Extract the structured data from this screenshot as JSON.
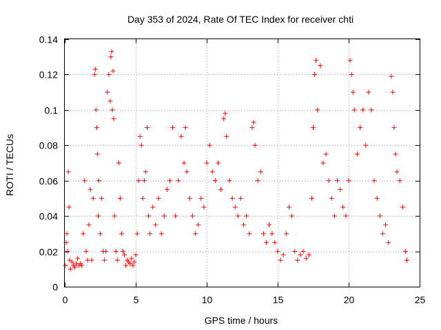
{
  "chart_data": {
    "type": "scatter",
    "title": "Day 353 of 2024, Rate Of TEC Index for receiver chti",
    "xlabel": "GPS time / hours",
    "ylabel": "ROTI / TECUs",
    "xlim": [
      0,
      25
    ],
    "ylim": [
      0,
      0.14
    ],
    "x_ticks": [
      0,
      5,
      10,
      15,
      20,
      25
    ],
    "x_tick_labels": [
      "0",
      "5",
      "10",
      "15",
      "20",
      "25"
    ],
    "y_ticks": [
      0,
      0.02,
      0.04,
      0.06,
      0.08,
      0.1,
      0.12,
      0.14
    ],
    "y_tick_labels": [
      "0",
      "0.02",
      "0.04",
      "0.06",
      "0.08",
      "0.1",
      "0.12",
      "0.14"
    ],
    "grid": true,
    "marker": "+",
    "series": [
      {
        "name": "ROTI",
        "color": "#ff0000",
        "x": [
          0.05,
          0.1,
          0.15,
          0.2,
          0.25,
          0.3,
          0.35,
          0.4,
          0.5,
          0.6,
          0.7,
          0.8,
          0.9,
          1.0,
          1.1,
          1.2,
          1.3,
          1.4,
          1.5,
          1.6,
          1.7,
          1.8,
          1.9,
          2.0,
          2.1,
          2.15,
          2.2,
          2.25,
          2.3,
          2.35,
          2.4,
          2.5,
          2.6,
          2.7,
          2.8,
          2.9,
          3.0,
          3.1,
          3.2,
          3.25,
          3.3,
          3.35,
          3.4,
          3.45,
          3.5,
          3.6,
          3.7,
          3.8,
          3.9,
          4.0,
          4.1,
          4.2,
          4.3,
          4.4,
          4.5,
          4.6,
          4.7,
          4.8,
          4.9,
          5.0,
          5.1,
          5.2,
          5.3,
          5.4,
          5.5,
          5.6,
          5.7,
          5.8,
          5.9,
          6.0,
          6.2,
          6.4,
          6.6,
          6.8,
          7.0,
          7.2,
          7.4,
          7.6,
          7.8,
          8.0,
          8.2,
          8.4,
          8.5,
          8.6,
          8.8,
          9.0,
          9.2,
          9.4,
          9.6,
          9.8,
          10.0,
          10.2,
          10.4,
          10.6,
          10.8,
          11.0,
          11.2,
          11.3,
          11.4,
          11.6,
          11.8,
          12.0,
          12.2,
          12.4,
          12.6,
          12.8,
          13.0,
          13.2,
          13.3,
          13.4,
          13.6,
          13.8,
          14.0,
          14.2,
          14.4,
          14.6,
          14.8,
          15.0,
          15.2,
          15.4,
          15.6,
          15.8,
          16.0,
          16.2,
          16.4,
          16.6,
          16.8,
          17.0,
          17.2,
          17.4,
          17.5,
          17.6,
          17.7,
          17.8,
          18.0,
          18.2,
          18.4,
          18.6,
          18.8,
          19.0,
          19.2,
          19.4,
          19.6,
          19.8,
          20.0,
          20.1,
          20.2,
          20.3,
          20.4,
          20.6,
          20.8,
          21.0,
          21.2,
          21.4,
          21.6,
          21.8,
          22.0,
          22.2,
          22.4,
          22.6,
          22.8,
          23.0,
          23.1,
          23.2,
          23.3,
          23.4,
          23.6,
          23.8,
          24.0,
          24.1
        ],
        "y": [
          0.012,
          0.025,
          0.03,
          0.02,
          0.065,
          0.045,
          0.015,
          0.01,
          0.014,
          0.012,
          0.011,
          0.013,
          0.016,
          0.012,
          0.013,
          0.012,
          0.03,
          0.06,
          0.02,
          0.015,
          0.035,
          0.055,
          0.015,
          0.05,
          0.12,
          0.123,
          0.1,
          0.09,
          0.075,
          0.04,
          0.06,
          0.03,
          0.05,
          0.02,
          0.015,
          0.02,
          0.11,
          0.12,
          0.105,
          0.13,
          0.133,
          0.1,
          0.122,
          0.095,
          0.04,
          0.02,
          0.015,
          0.07,
          0.05,
          0.03,
          0.02,
          0.018,
          0.012,
          0.015,
          0.014,
          0.013,
          0.016,
          0.012,
          0.014,
          0.018,
          0.03,
          0.06,
          0.085,
          0.08,
          0.05,
          0.06,
          0.065,
          0.09,
          0.04,
          0.03,
          0.045,
          0.035,
          0.05,
          0.03,
          0.04,
          0.055,
          0.06,
          0.09,
          0.04,
          0.06,
          0.085,
          0.07,
          0.09,
          0.065,
          0.05,
          0.04,
          0.03,
          0.035,
          0.05,
          0.045,
          0.07,
          0.08,
          0.065,
          0.06,
          0.07,
          0.055,
          0.095,
          0.098,
          0.085,
          0.06,
          0.05,
          0.045,
          0.04,
          0.05,
          0.035,
          0.04,
          0.03,
          0.09,
          0.093,
          0.08,
          0.06,
          0.065,
          0.03,
          0.025,
          0.035,
          0.03,
          0.025,
          0.02,
          0.015,
          0.018,
          0.03,
          0.045,
          0.04,
          0.02,
          0.015,
          0.018,
          0.02,
          0.016,
          0.018,
          0.05,
          0.09,
          0.12,
          0.128,
          0.1,
          0.125,
          0.07,
          0.075,
          0.06,
          0.05,
          0.04,
          0.06,
          0.055,
          0.045,
          0.04,
          0.06,
          0.128,
          0.12,
          0.11,
          0.1,
          0.075,
          0.09,
          0.1,
          0.08,
          0.11,
          0.1,
          0.06,
          0.05,
          0.04,
          0.03,
          0.035,
          0.025,
          0.119,
          0.11,
          0.09,
          0.075,
          0.065,
          0.06,
          0.045,
          0.02,
          0.015
        ]
      }
    ]
  }
}
